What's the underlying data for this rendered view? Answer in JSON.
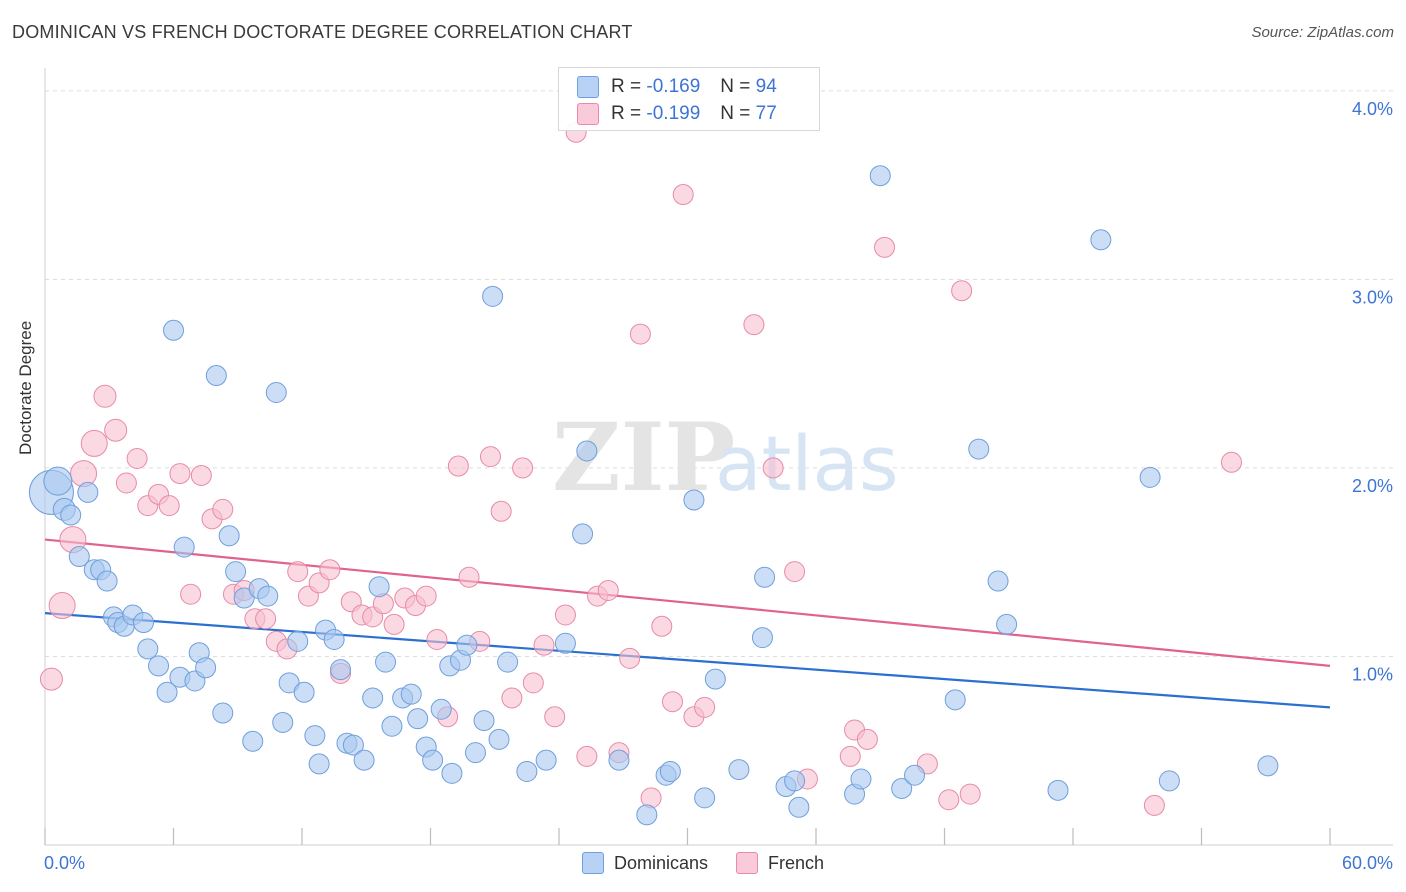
{
  "title": "DOMINICAN VS FRENCH DOCTORATE DEGREE CORRELATION CHART",
  "source": "Source: ZipAtlas.com",
  "watermark": {
    "zip": "ZIP",
    "atlas": "atlas"
  },
  "legend_top": [
    {
      "r_label": "R = ",
      "r_value": "-0.169",
      "n_label": "N = ",
      "n_value": "94"
    },
    {
      "r_label": "R = ",
      "r_value": "-0.199",
      "n_label": "N = ",
      "n_value": "77"
    }
  ],
  "legend_bottom": [
    "Dominicans",
    "French"
  ],
  "colors": {
    "dominicans_fill": "#a8c8f0",
    "dominicans_stroke": "#6f9fdc",
    "dominicans_line": "#2b6fd0",
    "french_fill": "#f7bfd0",
    "french_stroke": "#e88aa8",
    "french_line": "#e0628e",
    "axis_label": "#3d74d6"
  },
  "chart_data": {
    "type": "scatter",
    "title": "DOMINICAN VS FRENCH DOCTORATE DEGREE CORRELATION CHART",
    "xlabel": "",
    "ylabel": "Doctorate Degree",
    "xlim": [
      0,
      60
    ],
    "ylim": [
      0,
      4.1
    ],
    "x_tick_labels": [
      "0.0%",
      "60.0%"
    ],
    "y_ticks": [
      1.0,
      2.0,
      3.0,
      4.0
    ],
    "y_tick_labels": [
      "1.0%",
      "2.0%",
      "3.0%",
      "4.0%"
    ],
    "series": [
      {
        "name": "Dominicans",
        "r": -0.169,
        "n": 94,
        "trend": {
          "x": [
            0,
            60
          ],
          "y": [
            1.23,
            0.73
          ]
        },
        "points": [
          [
            0.3,
            1.87,
            22
          ],
          [
            0.6,
            1.93,
            14
          ],
          [
            0.9,
            1.78,
            11
          ],
          [
            1.2,
            1.75,
            10
          ],
          [
            1.6,
            1.53,
            10
          ],
          [
            2.0,
            1.87,
            10
          ],
          [
            2.3,
            1.46,
            10
          ],
          [
            2.6,
            1.46,
            10
          ],
          [
            2.9,
            1.4,
            10
          ],
          [
            3.2,
            1.21,
            10
          ],
          [
            3.4,
            1.18,
            10
          ],
          [
            3.7,
            1.16,
            10
          ],
          [
            4.1,
            1.22,
            10
          ],
          [
            4.6,
            1.18,
            10
          ],
          [
            4.8,
            1.04,
            10
          ],
          [
            5.3,
            0.95,
            10
          ],
          [
            5.7,
            0.81,
            10
          ],
          [
            6.0,
            2.73,
            10
          ],
          [
            6.3,
            0.89,
            10
          ],
          [
            6.5,
            1.58,
            10
          ],
          [
            7.0,
            0.87,
            10
          ],
          [
            7.2,
            1.02,
            10
          ],
          [
            7.5,
            0.94,
            10
          ],
          [
            8.0,
            2.49,
            10
          ],
          [
            8.3,
            0.7,
            10
          ],
          [
            8.6,
            1.64,
            10
          ],
          [
            8.9,
            1.45,
            10
          ],
          [
            9.3,
            1.31,
            10
          ],
          [
            9.7,
            0.55,
            10
          ],
          [
            10.0,
            1.36,
            10
          ],
          [
            10.4,
            1.32,
            10
          ],
          [
            10.8,
            2.4,
            10
          ],
          [
            11.1,
            0.65,
            10
          ],
          [
            11.4,
            0.86,
            10
          ],
          [
            11.8,
            1.08,
            10
          ],
          [
            12.1,
            0.81,
            10
          ],
          [
            12.6,
            0.58,
            10
          ],
          [
            12.8,
            0.43,
            10
          ],
          [
            13.1,
            1.14,
            10
          ],
          [
            13.5,
            1.09,
            10
          ],
          [
            13.8,
            0.93,
            10
          ],
          [
            14.1,
            0.54,
            10
          ],
          [
            14.4,
            0.53,
            10
          ],
          [
            14.9,
            0.45,
            10
          ],
          [
            15.3,
            0.78,
            10
          ],
          [
            15.6,
            1.37,
            10
          ],
          [
            15.9,
            0.97,
            10
          ],
          [
            16.2,
            0.63,
            10
          ],
          [
            16.7,
            0.78,
            10
          ],
          [
            17.1,
            0.8,
            10
          ],
          [
            17.4,
            0.67,
            10
          ],
          [
            17.8,
            0.52,
            10
          ],
          [
            18.1,
            0.45,
            10
          ],
          [
            18.5,
            0.72,
            10
          ],
          [
            18.9,
            0.95,
            10
          ],
          [
            19.0,
            0.38,
            10
          ],
          [
            19.4,
            0.98,
            10
          ],
          [
            19.7,
            1.06,
            10
          ],
          [
            20.1,
            0.49,
            10
          ],
          [
            20.5,
            0.66,
            10
          ],
          [
            20.9,
            2.91,
            10
          ],
          [
            21.2,
            0.56,
            10
          ],
          [
            21.6,
            0.97,
            10
          ],
          [
            22.5,
            0.39,
            10
          ],
          [
            23.4,
            0.45,
            10
          ],
          [
            24.3,
            1.07,
            10
          ],
          [
            25.1,
            1.65,
            10
          ],
          [
            25.3,
            2.09,
            10
          ],
          [
            26.8,
            0.45,
            10
          ],
          [
            28.1,
            0.16,
            10
          ],
          [
            29.0,
            0.37,
            10
          ],
          [
            29.2,
            0.39,
            10
          ],
          [
            30.3,
            1.83,
            10
          ],
          [
            30.8,
            0.25,
            10
          ],
          [
            31.3,
            0.88,
            10
          ],
          [
            32.4,
            0.4,
            10
          ],
          [
            33.5,
            1.1,
            10
          ],
          [
            33.6,
            1.42,
            10
          ],
          [
            34.6,
            0.31,
            10
          ],
          [
            35.0,
            0.34,
            10
          ],
          [
            35.2,
            0.2,
            10
          ],
          [
            37.8,
            0.27,
            10
          ],
          [
            38.1,
            0.35,
            10
          ],
          [
            39.0,
            3.55,
            10
          ],
          [
            40.0,
            0.3,
            10
          ],
          [
            40.6,
            0.37,
            10
          ],
          [
            42.5,
            0.77,
            10
          ],
          [
            43.6,
            2.1,
            10
          ],
          [
            44.5,
            1.4,
            10
          ],
          [
            44.9,
            1.17,
            10
          ],
          [
            47.3,
            0.29,
            10
          ],
          [
            49.3,
            3.21,
            10
          ],
          [
            51.6,
            1.95,
            10
          ],
          [
            52.5,
            0.34,
            10
          ],
          [
            57.1,
            0.42,
            10
          ]
        ]
      },
      {
        "name": "French",
        "r": -0.199,
        "n": 77,
        "trend": {
          "x": [
            0,
            60
          ],
          "y": [
            1.62,
            0.95
          ]
        },
        "points": [
          [
            0.3,
            0.88,
            11
          ],
          [
            0.8,
            1.27,
            13
          ],
          [
            1.3,
            1.62,
            13
          ],
          [
            1.8,
            1.97,
            13
          ],
          [
            2.3,
            2.13,
            13
          ],
          [
            2.8,
            2.38,
            11
          ],
          [
            3.3,
            2.2,
            11
          ],
          [
            3.8,
            1.92,
            10
          ],
          [
            4.3,
            2.05,
            10
          ],
          [
            4.8,
            1.8,
            10
          ],
          [
            5.3,
            1.86,
            10
          ],
          [
            5.8,
            1.8,
            10
          ],
          [
            6.3,
            1.97,
            10
          ],
          [
            6.8,
            1.33,
            10
          ],
          [
            7.3,
            1.96,
            10
          ],
          [
            7.8,
            1.73,
            10
          ],
          [
            8.3,
            1.78,
            10
          ],
          [
            8.8,
            1.33,
            10
          ],
          [
            9.3,
            1.35,
            10
          ],
          [
            9.8,
            1.2,
            10
          ],
          [
            10.3,
            1.2,
            10
          ],
          [
            10.8,
            1.08,
            10
          ],
          [
            11.3,
            1.04,
            10
          ],
          [
            11.8,
            1.45,
            10
          ],
          [
            12.3,
            1.32,
            10
          ],
          [
            12.8,
            1.39,
            10
          ],
          [
            13.3,
            1.46,
            10
          ],
          [
            13.8,
            0.91,
            10
          ],
          [
            14.3,
            1.29,
            10
          ],
          [
            14.8,
            1.22,
            10
          ],
          [
            15.3,
            1.21,
            10
          ],
          [
            15.8,
            1.28,
            10
          ],
          [
            16.3,
            1.17,
            10
          ],
          [
            16.8,
            1.31,
            10
          ],
          [
            17.3,
            1.27,
            10
          ],
          [
            17.8,
            1.32,
            10
          ],
          [
            18.3,
            1.09,
            10
          ],
          [
            18.8,
            0.68,
            10
          ],
          [
            19.3,
            2.01,
            10
          ],
          [
            19.8,
            1.42,
            10
          ],
          [
            20.3,
            1.08,
            10
          ],
          [
            20.8,
            2.06,
            10
          ],
          [
            21.3,
            1.77,
            10
          ],
          [
            21.8,
            0.78,
            10
          ],
          [
            22.3,
            2.0,
            10
          ],
          [
            22.8,
            0.86,
            10
          ],
          [
            23.3,
            1.06,
            10
          ],
          [
            23.8,
            0.68,
            10
          ],
          [
            24.3,
            1.22,
            10
          ],
          [
            24.8,
            3.78,
            10
          ],
          [
            25.3,
            0.47,
            10
          ],
          [
            25.8,
            1.32,
            10
          ],
          [
            26.3,
            1.35,
            10
          ],
          [
            26.8,
            0.49,
            10
          ],
          [
            27.3,
            0.99,
            10
          ],
          [
            27.8,
            2.71,
            10
          ],
          [
            28.3,
            0.25,
            10
          ],
          [
            28.8,
            1.16,
            10
          ],
          [
            29.3,
            0.76,
            10
          ],
          [
            29.8,
            3.45,
            10
          ],
          [
            30.3,
            0.68,
            10
          ],
          [
            30.8,
            0.73,
            10
          ],
          [
            33.1,
            2.76,
            10
          ],
          [
            34.0,
            2.0,
            10
          ],
          [
            35.0,
            1.45,
            10
          ],
          [
            35.6,
            0.35,
            10
          ],
          [
            37.6,
            0.47,
            10
          ],
          [
            37.8,
            0.61,
            10
          ],
          [
            38.4,
            0.56,
            10
          ],
          [
            39.2,
            3.17,
            10
          ],
          [
            41.2,
            0.43,
            10
          ],
          [
            42.2,
            0.24,
            10
          ],
          [
            42.8,
            2.94,
            10
          ],
          [
            43.2,
            0.27,
            10
          ],
          [
            51.8,
            0.21,
            10
          ],
          [
            55.4,
            2.03,
            10
          ]
        ]
      }
    ]
  }
}
